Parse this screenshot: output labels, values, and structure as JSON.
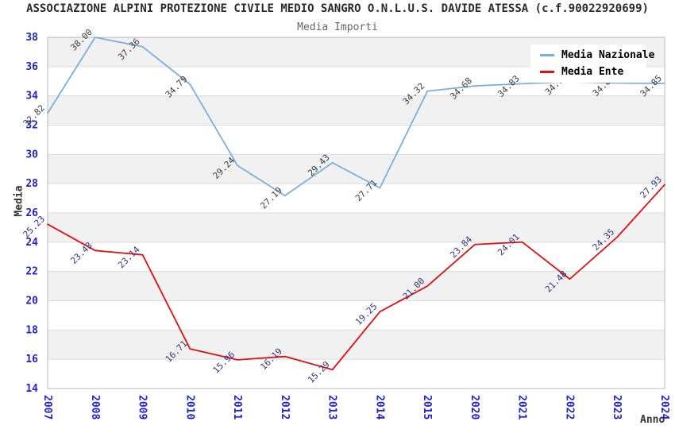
{
  "chart_data": {
    "type": "line",
    "title": "ASSOCIAZIONE ALPINI PROTEZIONE CIVILE MEDIO SANGRO O.N.L.U.S. DAVIDE ATESSA (c.f.90022920699)",
    "subtitle": "Media Importi",
    "xlabel": "Anno",
    "ylabel": "Media",
    "ylim": [
      14,
      38
    ],
    "ytick_step": 2,
    "grid": true,
    "legend_position": "top-right",
    "categories": [
      "2007",
      "2008",
      "2009",
      "2010",
      "2011",
      "2012",
      "2013",
      "2014",
      "2015",
      "2020",
      "2021",
      "2022",
      "2023",
      "2024"
    ],
    "series": [
      {
        "name": "Media Nazionale",
        "color": "#7aaede",
        "label_color": "#3c3c3c",
        "values": [
          32.82,
          38.0,
          37.36,
          34.79,
          29.24,
          27.19,
          29.43,
          27.71,
          34.32,
          34.68,
          34.83,
          34.97,
          34.88,
          34.85
        ]
      },
      {
        "name": "Media Ente",
        "color": "#e01010",
        "label_color": "#33337a",
        "values": [
          25.23,
          23.43,
          23.14,
          16.71,
          15.96,
          16.19,
          15.29,
          19.25,
          21.0,
          23.84,
          24.01,
          21.48,
          24.35,
          27.93
        ]
      }
    ],
    "colors": {
      "tick": "#2323cb",
      "band": "#f1f1f1",
      "grid": "#dcdcdc",
      "border": "#b8b8b8",
      "axis_title": "#333333"
    }
  }
}
